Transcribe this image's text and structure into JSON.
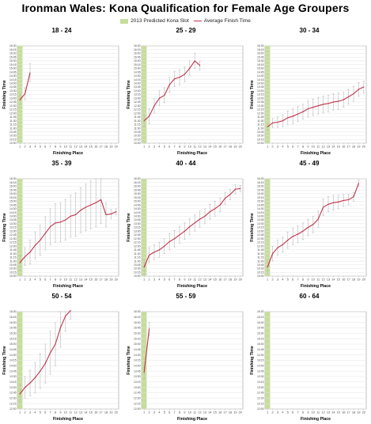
{
  "title": "Ironman Wales: Kona Qualification for Female Age Groupers",
  "legend": {
    "slot_label": "2013 Predicted Kona Slot",
    "avg_label": "Average Finish Time"
  },
  "colors": {
    "slot": "#c6dd9b",
    "line": "#c0334a",
    "error": "#bbbbbb",
    "grid": "#e4e4e4"
  },
  "axes": {
    "xlabel": "Finishing Place",
    "ylabel": "Finishing Time",
    "x_ticks": [
      "1",
      "2",
      "3",
      "4",
      "5",
      "6",
      "7",
      "8",
      "9",
      "10",
      "11",
      "12",
      "13",
      "14",
      "15",
      "16",
      "17",
      "18",
      "19",
      "20"
    ],
    "y_ticks": [
      "10:00",
      "10:15",
      "10:30",
      "10:45",
      "11:00",
      "11:15",
      "11:30",
      "11:45",
      "12:00",
      "12:15",
      "12:30",
      "12:45",
      "13:00",
      "13:15",
      "13:30",
      "13:45",
      "14:00",
      "14:15",
      "14:30",
      "14:45",
      "15:00",
      "15:15",
      "15:30",
      "15:45",
      "16:00",
      "16:15",
      "16:30"
    ]
  },
  "chart_data": [
    {
      "type": "line",
      "title": "18 - 24",
      "slots": 1,
      "ylim": [
        10.0,
        16.5
      ],
      "x": [
        1,
        2,
        3
      ],
      "values": [
        12.9,
        13.3,
        14.7
      ],
      "err": [
        0.35,
        0.4,
        0.6
      ]
    },
    {
      "type": "line",
      "title": "25 - 29",
      "slots": 1,
      "ylim": [
        10.0,
        16.5
      ],
      "x": [
        1,
        2,
        3,
        4,
        5,
        6,
        7,
        8,
        9,
        10,
        11,
        12
      ],
      "values": [
        11.5,
        11.8,
        12.5,
        13.0,
        13.2,
        13.9,
        14.3,
        14.4,
        14.6,
        15.0,
        15.5,
        15.2
      ],
      "err": [
        0.4,
        0.5,
        0.5,
        0.5,
        0.5,
        0.5,
        0.5,
        0.5,
        0.5,
        0.5,
        0.5,
        0.3
      ]
    },
    {
      "type": "line",
      "title": "30 - 34",
      "slots": 1,
      "ylim": [
        10.0,
        16.5
      ],
      "x": [
        1,
        2,
        3,
        4,
        5,
        6,
        7,
        8,
        9,
        10,
        11,
        12,
        13,
        14,
        15,
        16,
        17,
        18,
        19,
        20
      ],
      "values": [
        11.1,
        11.35,
        11.4,
        11.5,
        11.7,
        11.8,
        11.95,
        12.1,
        12.3,
        12.4,
        12.5,
        12.6,
        12.65,
        12.75,
        12.8,
        12.9,
        13.1,
        13.3,
        13.6,
        13.75
      ],
      "err": [
        0.25,
        0.3,
        0.35,
        0.4,
        0.45,
        0.5,
        0.5,
        0.5,
        0.55,
        0.55,
        0.55,
        0.55,
        0.55,
        0.55,
        0.55,
        0.5,
        0.5,
        0.5,
        0.45,
        0.4
      ]
    },
    {
      "type": "line",
      "title": "35 - 39",
      "slots": 1,
      "ylim": [
        10.0,
        16.5
      ],
      "x": [
        1,
        2,
        3,
        4,
        5,
        6,
        7,
        8,
        9,
        10,
        11,
        12,
        13,
        14,
        15,
        16,
        17,
        18,
        19,
        20
      ],
      "values": [
        10.9,
        11.3,
        11.6,
        12.05,
        12.4,
        12.85,
        13.3,
        13.55,
        13.6,
        13.75,
        14.0,
        14.1,
        14.4,
        14.6,
        14.75,
        14.9,
        15.1,
        14.1,
        14.15,
        14.3
      ],
      "err": [
        0.5,
        0.6,
        0.8,
        0.9,
        1.0,
        1.1,
        1.2,
        1.3,
        1.3,
        1.35,
        1.4,
        1.45,
        1.5,
        1.55,
        1.6,
        1.6,
        1.6,
        0.8,
        0.3,
        0.2
      ]
    },
    {
      "type": "line",
      "title": "40 - 44",
      "slots": 1,
      "ylim": [
        10.0,
        16.5
      ],
      "x": [
        1,
        2,
        3,
        4,
        5,
        6,
        7,
        8,
        9,
        10,
        11,
        12,
        13,
        14,
        15,
        16,
        17,
        18,
        19,
        20
      ],
      "values": [
        10.6,
        11.4,
        11.6,
        11.75,
        12.0,
        12.3,
        12.5,
        12.75,
        13.0,
        13.3,
        13.55,
        13.8,
        14.0,
        14.3,
        14.5,
        14.75,
        15.2,
        15.45,
        15.8,
        15.85
      ],
      "err": [
        0.5,
        0.5,
        0.5,
        0.5,
        0.5,
        0.55,
        0.55,
        0.55,
        0.55,
        0.55,
        0.55,
        0.55,
        0.5,
        0.5,
        0.5,
        0.45,
        0.4,
        0.35,
        0.3,
        0.2
      ]
    },
    {
      "type": "line",
      "title": "45 - 49",
      "slots": 1,
      "ylim": [
        10.0,
        16.5
      ],
      "x": [
        1,
        2,
        3,
        4,
        5,
        6,
        7,
        8,
        9,
        10,
        11,
        12,
        13,
        14,
        15,
        16,
        17,
        18,
        19,
        20
      ],
      "values": [
        10.6,
        11.5,
        11.9,
        12.1,
        12.4,
        12.65,
        12.8,
        13.0,
        13.25,
        13.45,
        13.8,
        14.6,
        14.8,
        14.9,
        14.95,
        15.05,
        15.1,
        15.3,
        16.2,
        null
      ],
      "err": [
        0.4,
        0.5,
        0.5,
        0.5,
        0.55,
        0.55,
        0.55,
        0.55,
        0.55,
        0.55,
        0.55,
        0.55,
        0.5,
        0.5,
        0.45,
        0.4,
        0.35,
        0.3,
        0.2,
        0
      ]
    },
    {
      "type": "line",
      "title": "50 - 54",
      "slots": 1,
      "ylim": [
        12.0,
        16.5
      ],
      "x": [
        1,
        2,
        3,
        4,
        5,
        6,
        7,
        8,
        9,
        10,
        11
      ],
      "values": [
        12.7,
        13.0,
        13.2,
        13.45,
        13.75,
        14.1,
        14.6,
        15.0,
        15.75,
        16.3,
        16.55
      ],
      "err": [
        0.4,
        0.5,
        0.6,
        0.7,
        0.8,
        0.9,
        1.0,
        1.0,
        0.9,
        0.7,
        0.4
      ]
    },
    {
      "type": "line",
      "title": "55 - 59",
      "slots": 1,
      "ylim": [
        12.0,
        16.5
      ],
      "x": [
        1,
        2
      ],
      "values": [
        13.7,
        15.7
      ],
      "err": [
        0.3,
        0.3
      ]
    },
    {
      "type": "line",
      "title": "60 - 64",
      "slots": 1,
      "ylim": [
        12.0,
        16.5
      ],
      "x": [],
      "values": [],
      "err": []
    }
  ]
}
